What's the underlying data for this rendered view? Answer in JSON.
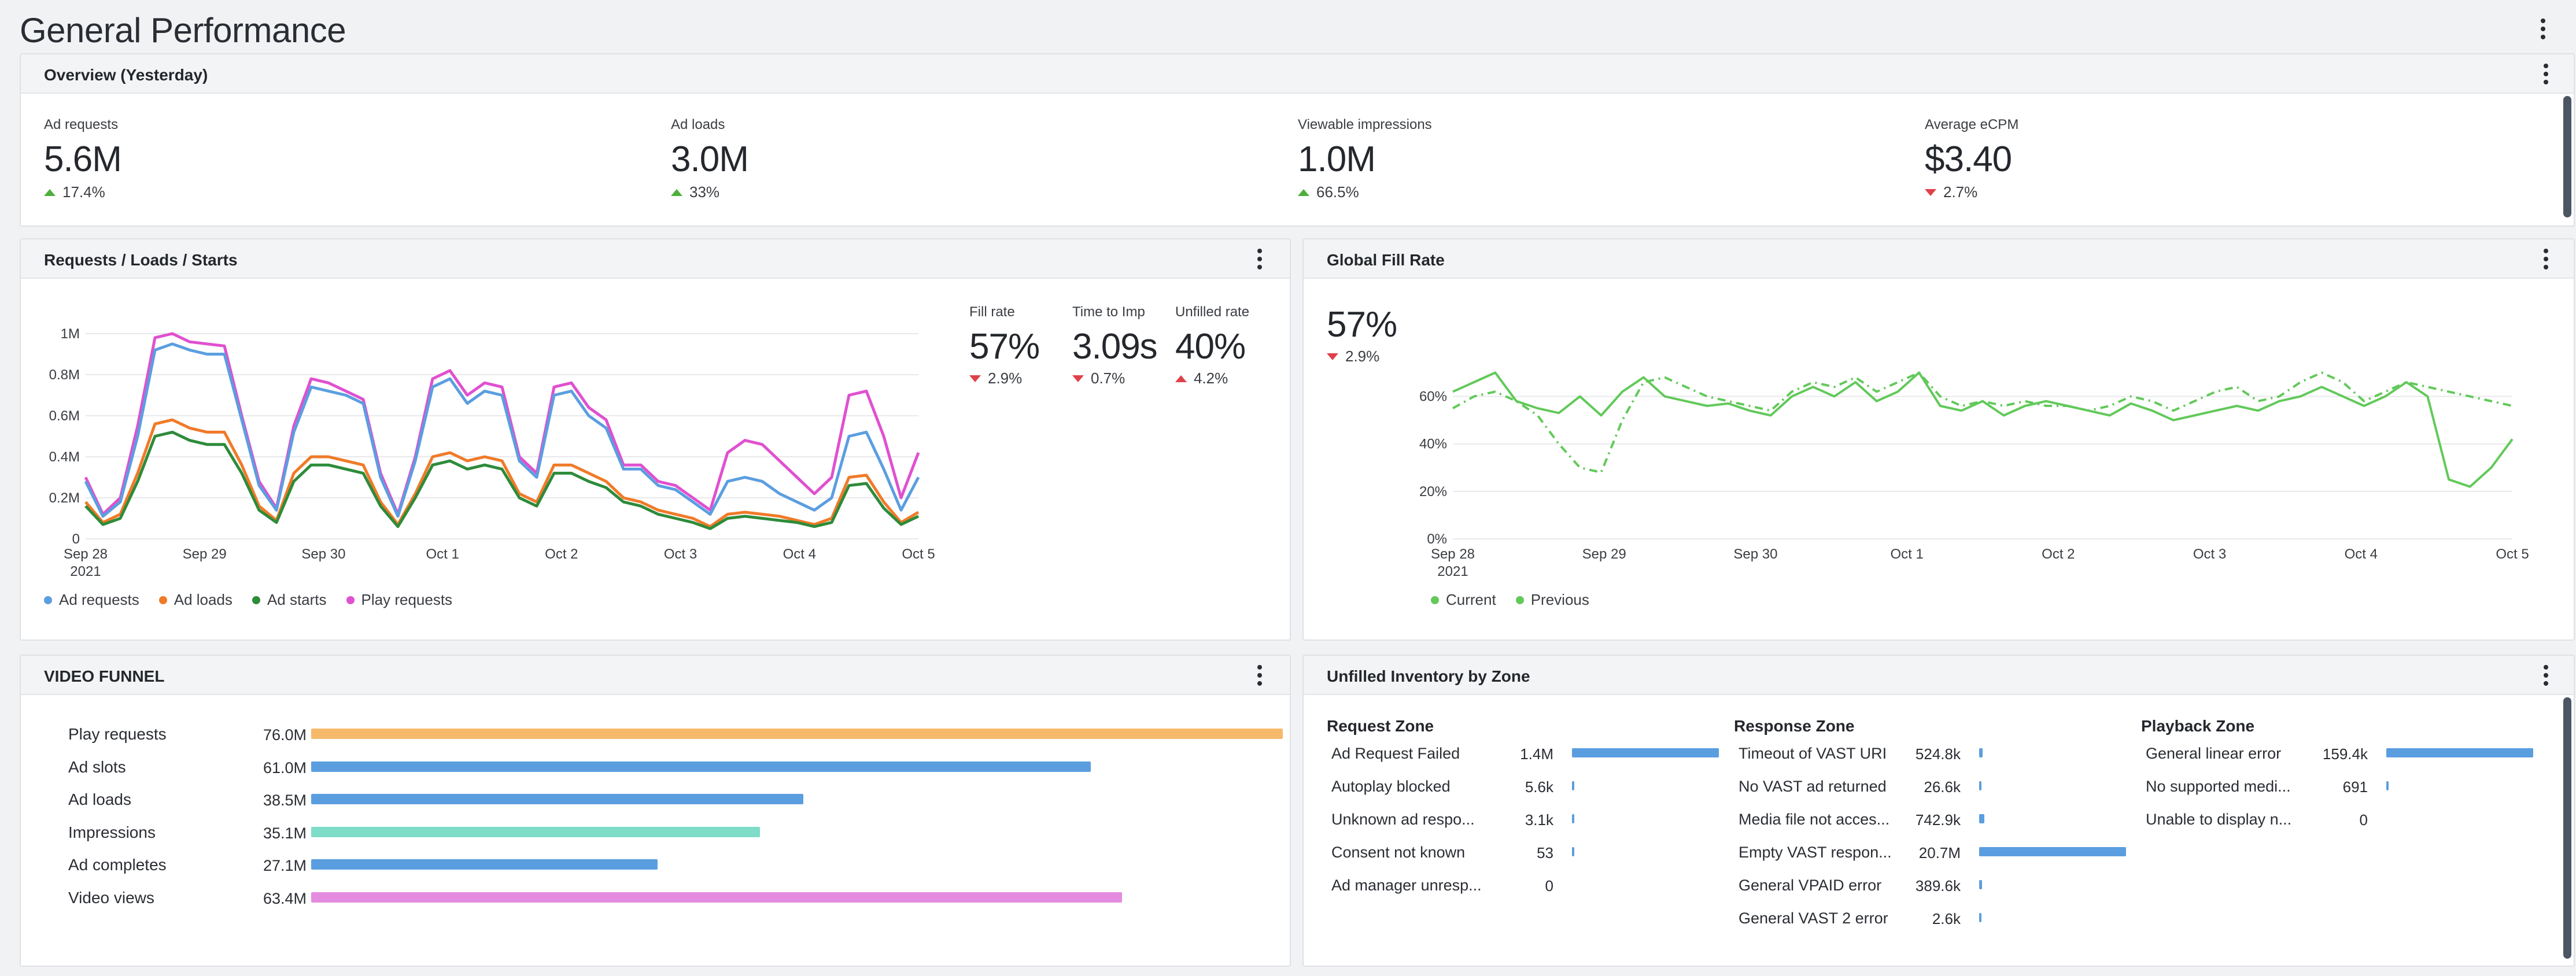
{
  "page": {
    "title": "General Performance"
  },
  "overview": {
    "title": "Overview (Yesterday)",
    "kpis": [
      {
        "label": "Ad requests",
        "value": "5.6M",
        "delta": "17.4%",
        "direction": "up"
      },
      {
        "label": "Ad loads",
        "value": "3.0M",
        "delta": "33%",
        "direction": "up"
      },
      {
        "label": "Viewable impressions",
        "value": "1.0M",
        "delta": "66.5%",
        "direction": "up"
      },
      {
        "label": "Average eCPM",
        "value": "$3.40",
        "delta": "2.7%",
        "direction": "down"
      }
    ]
  },
  "rls": {
    "title": "Requests / Loads / Starts",
    "stats": [
      {
        "label": "Fill rate",
        "value": "57%",
        "delta": "2.9%",
        "direction": "down"
      },
      {
        "label": "Time to Imp",
        "value": "3.09s",
        "delta": "0.7%",
        "direction": "down"
      },
      {
        "label": "Unfilled rate",
        "value": "40%",
        "delta": "4.2%",
        "direction": "up"
      }
    ],
    "legend": [
      "Ad requests",
      "Ad loads",
      "Ad starts",
      "Play requests"
    ]
  },
  "fill": {
    "title": "Global Fill Rate",
    "value": "57%",
    "delta": "2.9%",
    "legend": [
      "Current",
      "Previous"
    ]
  },
  "funnel": {
    "title": "VIDEO FUNNEL",
    "rows": [
      {
        "label": "Play requests",
        "value": "76.0M",
        "num": 76.0,
        "color": "#f6b96b"
      },
      {
        "label": "Ad slots",
        "value": "61.0M",
        "num": 61.0,
        "color": "#5b9ee0"
      },
      {
        "label": "Ad loads",
        "value": "38.5M",
        "num": 38.5,
        "color": "#5b9ee0"
      },
      {
        "label": "Impressions",
        "value": "35.1M",
        "num": 35.1,
        "color": "#7fdcc8"
      },
      {
        "label": "Ad completes",
        "value": "27.1M",
        "num": 27.1,
        "color": "#5b9ee0"
      },
      {
        "label": "Video views",
        "value": "63.4M",
        "num": 63.4,
        "color": "#e48ce0"
      }
    ]
  },
  "unfilled": {
    "title": "Unfilled Inventory by Zone",
    "zones": [
      {
        "title": "Request Zone",
        "rows": [
          {
            "label": "Ad Request Failed",
            "value": "1.4M",
            "num": 1400000
          },
          {
            "label": "Autoplay blocked",
            "value": "5.6k",
            "num": 5600
          },
          {
            "label": "Unknown ad respo...",
            "value": "3.1k",
            "num": 3100
          },
          {
            "label": "Consent not known",
            "value": "53",
            "num": 53
          },
          {
            "label": "Ad manager unresp...",
            "value": "0",
            "num": 0
          }
        ]
      },
      {
        "title": "Response Zone",
        "rows": [
          {
            "label": "Timeout of VAST URI",
            "value": "524.8k",
            "num": 524800
          },
          {
            "label": "No VAST ad returned",
            "value": "26.6k",
            "num": 26600
          },
          {
            "label": "Media file not acces...",
            "value": "742.9k",
            "num": 742900
          },
          {
            "label": "Empty VAST respon...",
            "value": "20.7M",
            "num": 20700000
          },
          {
            "label": "General VPAID error",
            "value": "389.6k",
            "num": 389600
          },
          {
            "label": "General VAST 2 error",
            "value": "2.6k",
            "num": 2600
          }
        ]
      },
      {
        "title": "Playback Zone",
        "rows": [
          {
            "label": "General linear error",
            "value": "159.4k",
            "num": 159400
          },
          {
            "label": "No supported medi...",
            "value": "691",
            "num": 691
          },
          {
            "label": "Unable to display n...",
            "value": "0",
            "num": 0
          }
        ]
      }
    ]
  },
  "colors": {
    "ad_requests": "#5b9ee0",
    "ad_loads": "#f07a28",
    "ad_starts": "#2e8b3a",
    "play_requests": "#e050d0",
    "current": "#62c95a",
    "previous": "#62c95a",
    "up": "#4caf3a",
    "down": "#e0404a"
  },
  "chart_data": [
    {
      "type": "line",
      "title": "Requests / Loads / Starts",
      "x_ticks": [
        "Sep 28\n2021",
        "Sep 29",
        "Sep 30",
        "Oct 1",
        "Oct 2",
        "Oct 3",
        "Oct 4",
        "Oct 5"
      ],
      "y_ticks": [
        "0",
        "0.2M",
        "0.4M",
        "0.6M",
        "0.8M",
        "1M"
      ],
      "ylim": [
        0,
        1000000
      ],
      "legend_position": "bottom-left",
      "grid": true,
      "series": [
        {
          "name": "Play requests",
          "values": [
            0.3,
            0.12,
            0.2,
            0.55,
            0.98,
            1.0,
            0.96,
            0.95,
            0.94,
            0.6,
            0.28,
            0.15,
            0.55,
            0.78,
            0.76,
            0.72,
            0.68,
            0.32,
            0.12,
            0.4,
            0.78,
            0.82,
            0.7,
            0.76,
            0.74,
            0.4,
            0.32,
            0.74,
            0.76,
            0.64,
            0.58,
            0.36,
            0.36,
            0.28,
            0.26,
            0.2,
            0.14,
            0.42,
            0.48,
            0.46,
            0.38,
            0.3,
            0.22,
            0.3,
            0.7,
            0.72,
            0.5,
            0.2,
            0.42
          ]
        },
        {
          "name": "Ad requests",
          "values": [
            0.28,
            0.11,
            0.18,
            0.5,
            0.92,
            0.95,
            0.92,
            0.9,
            0.9,
            0.58,
            0.26,
            0.14,
            0.52,
            0.74,
            0.72,
            0.7,
            0.66,
            0.3,
            0.11,
            0.38,
            0.74,
            0.78,
            0.66,
            0.72,
            0.7,
            0.38,
            0.3,
            0.7,
            0.72,
            0.6,
            0.54,
            0.34,
            0.34,
            0.26,
            0.24,
            0.18,
            0.12,
            0.28,
            0.3,
            0.28,
            0.22,
            0.18,
            0.14,
            0.2,
            0.5,
            0.52,
            0.34,
            0.14,
            0.3
          ]
        },
        {
          "name": "Ad loads",
          "values": [
            0.18,
            0.08,
            0.12,
            0.32,
            0.56,
            0.58,
            0.54,
            0.52,
            0.52,
            0.36,
            0.16,
            0.09,
            0.32,
            0.4,
            0.4,
            0.38,
            0.36,
            0.18,
            0.07,
            0.22,
            0.4,
            0.42,
            0.38,
            0.4,
            0.38,
            0.22,
            0.18,
            0.36,
            0.36,
            0.32,
            0.28,
            0.2,
            0.18,
            0.14,
            0.12,
            0.1,
            0.06,
            0.12,
            0.13,
            0.12,
            0.11,
            0.09,
            0.07,
            0.1,
            0.3,
            0.31,
            0.18,
            0.08,
            0.13
          ]
        },
        {
          "name": "Ad starts",
          "values": [
            0.16,
            0.07,
            0.1,
            0.28,
            0.5,
            0.52,
            0.48,
            0.46,
            0.46,
            0.32,
            0.14,
            0.08,
            0.28,
            0.36,
            0.36,
            0.34,
            0.32,
            0.16,
            0.06,
            0.2,
            0.36,
            0.38,
            0.34,
            0.36,
            0.34,
            0.2,
            0.16,
            0.32,
            0.32,
            0.28,
            0.25,
            0.18,
            0.16,
            0.12,
            0.1,
            0.08,
            0.05,
            0.1,
            0.11,
            0.1,
            0.09,
            0.08,
            0.06,
            0.08,
            0.26,
            0.27,
            0.15,
            0.07,
            0.11
          ]
        }
      ]
    },
    {
      "type": "line",
      "title": "Global Fill Rate",
      "x_ticks": [
        "Sep 28\n2021",
        "Sep 29",
        "Sep 30",
        "Oct 1",
        "Oct 2",
        "Oct 3",
        "Oct 4",
        "Oct 5"
      ],
      "y_ticks": [
        "0%",
        "20%",
        "40%",
        "60%"
      ],
      "ylim": [
        0,
        75
      ],
      "legend_position": "bottom-left",
      "grid": true,
      "series": [
        {
          "name": "Current",
          "values": [
            62,
            66,
            70,
            58,
            55,
            53,
            60,
            52,
            62,
            68,
            60,
            58,
            56,
            57,
            54,
            52,
            60,
            64,
            60,
            66,
            58,
            62,
            70,
            56,
            54,
            58,
            52,
            56,
            58,
            56,
            54,
            52,
            57,
            54,
            50,
            52,
            54,
            56,
            54,
            58,
            60,
            64,
            60,
            56,
            60,
            66,
            60,
            25,
            22,
            30,
            42
          ]
        },
        {
          "name": "Previous",
          "values": [
            55,
            60,
            62,
            58,
            52,
            40,
            30,
            28,
            50,
            66,
            68,
            64,
            60,
            58,
            56,
            54,
            62,
            66,
            64,
            68,
            62,
            66,
            70,
            60,
            56,
            58,
            56,
            58,
            56,
            56,
            54,
            56,
            60,
            58,
            54,
            58,
            62,
            64,
            58,
            60,
            66,
            70,
            66,
            58,
            62,
            66,
            64,
            62,
            60,
            58,
            56
          ]
        }
      ]
    },
    {
      "type": "bar",
      "title": "VIDEO FUNNEL",
      "categories": [
        "Play requests",
        "Ad slots",
        "Ad loads",
        "Impressions",
        "Ad completes",
        "Video views"
      ],
      "values": [
        76.0,
        61.0,
        38.5,
        35.1,
        27.1,
        63.4
      ]
    }
  ]
}
